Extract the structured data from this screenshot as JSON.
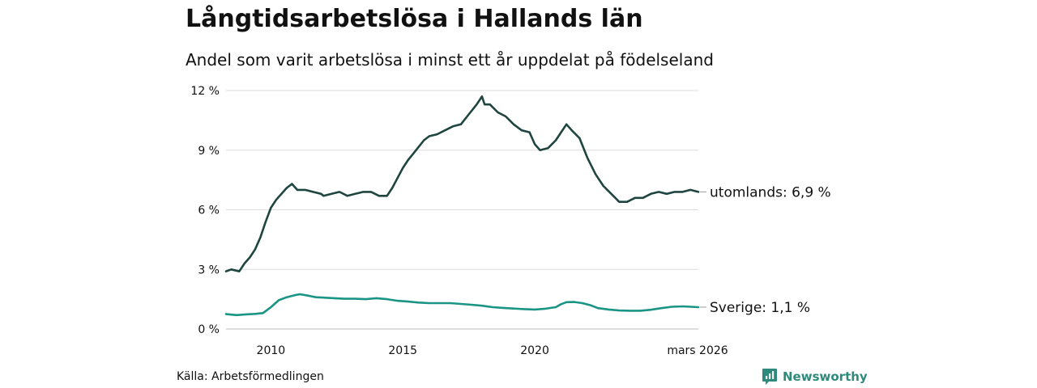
{
  "chart_data": {
    "type": "line",
    "title": "Långtidsarbetslösa i Hallands län",
    "subtitle": "Andel som varit arbetslösa i minst ett år uppdelat på födelseland",
    "x_range": [
      2008.3,
      2026.2
    ],
    "ylim": [
      0,
      12
    ],
    "y_ticks": [
      0,
      3,
      6,
      9,
      12
    ],
    "y_tick_labels": [
      "0 %",
      "3 %",
      "6 %",
      "9 %",
      "12 %"
    ],
    "x_ticks": [
      2010,
      2015,
      2020,
      2026.17
    ],
    "x_tick_labels": [
      "2010",
      "2015",
      "2020",
      "mars 2026"
    ],
    "grid": true,
    "series": [
      {
        "name": "utomlands",
        "end_label": "utomlands: 6,9 %",
        "color": "#1f4540",
        "x": [
          2008.3,
          2008.5,
          2008.8,
          2009.0,
          2009.2,
          2009.4,
          2009.6,
          2009.8,
          2010.0,
          2010.2,
          2010.4,
          2010.6,
          2010.8,
          2011.0,
          2011.3,
          2011.6,
          2011.9,
          2012.0,
          2012.3,
          2012.6,
          2012.9,
          2013.2,
          2013.5,
          2013.8,
          2014.1,
          2014.4,
          2014.6,
          2014.8,
          2015.0,
          2015.2,
          2015.5,
          2015.8,
          2016.0,
          2016.3,
          2016.6,
          2016.9,
          2017.2,
          2017.5,
          2017.8,
          2018.0,
          2018.1,
          2018.3,
          2018.6,
          2018.9,
          2019.2,
          2019.5,
          2019.8,
          2020.0,
          2020.2,
          2020.5,
          2020.8,
          2021.0,
          2021.2,
          2021.4,
          2021.7,
          2022.0,
          2022.3,
          2022.6,
          2022.9,
          2023.2,
          2023.5,
          2023.8,
          2024.1,
          2024.4,
          2024.7,
          2025.0,
          2025.3,
          2025.6,
          2025.9,
          2026.2
        ],
        "values": [
          2.9,
          3.0,
          2.9,
          3.3,
          3.6,
          4.0,
          4.6,
          5.4,
          6.1,
          6.5,
          6.8,
          7.1,
          7.3,
          7.0,
          7.0,
          6.9,
          6.8,
          6.7,
          6.8,
          6.9,
          6.7,
          6.8,
          6.9,
          6.9,
          6.7,
          6.7,
          7.1,
          7.6,
          8.1,
          8.5,
          9.0,
          9.5,
          9.7,
          9.8,
          10.0,
          10.2,
          10.3,
          10.8,
          11.3,
          11.7,
          11.3,
          11.3,
          10.9,
          10.7,
          10.3,
          10.0,
          9.9,
          9.3,
          9.0,
          9.1,
          9.5,
          9.9,
          10.3,
          10.0,
          9.6,
          8.6,
          7.8,
          7.2,
          6.8,
          6.4,
          6.4,
          6.6,
          6.6,
          6.8,
          6.9,
          6.8,
          6.9,
          6.9,
          7.0,
          6.9
        ]
      },
      {
        "name": "Sverige",
        "end_label": "Sverige: 1,1 %",
        "color": "#1a9485",
        "x": [
          2008.3,
          2008.7,
          2009.0,
          2009.4,
          2009.7,
          2010.0,
          2010.3,
          2010.6,
          2010.9,
          2011.1,
          2011.4,
          2011.7,
          2012.0,
          2012.4,
          2012.8,
          2013.2,
          2013.6,
          2014.0,
          2014.4,
          2014.8,
          2015.2,
          2015.6,
          2016.0,
          2016.4,
          2016.8,
          2017.2,
          2017.6,
          2018.0,
          2018.4,
          2018.8,
          2019.2,
          2019.6,
          2020.0,
          2020.4,
          2020.8,
          2021.0,
          2021.2,
          2021.5,
          2021.8,
          2022.1,
          2022.4,
          2022.8,
          2023.2,
          2023.6,
          2024.0,
          2024.4,
          2024.8,
          2025.2,
          2025.6,
          2026.2
        ],
        "values": [
          0.75,
          0.7,
          0.73,
          0.76,
          0.8,
          1.1,
          1.45,
          1.6,
          1.7,
          1.75,
          1.68,
          1.6,
          1.58,
          1.55,
          1.52,
          1.52,
          1.5,
          1.55,
          1.5,
          1.42,
          1.38,
          1.33,
          1.3,
          1.3,
          1.3,
          1.26,
          1.22,
          1.17,
          1.1,
          1.06,
          1.03,
          1.0,
          0.98,
          1.02,
          1.1,
          1.25,
          1.35,
          1.36,
          1.3,
          1.2,
          1.05,
          0.98,
          0.93,
          0.92,
          0.92,
          0.97,
          1.05,
          1.12,
          1.14,
          1.1
        ]
      }
    ]
  },
  "source_label": "Källa: Arbetsförmedlingen",
  "brand": {
    "name": "Newsworthy",
    "color": "#2e8a7a"
  }
}
